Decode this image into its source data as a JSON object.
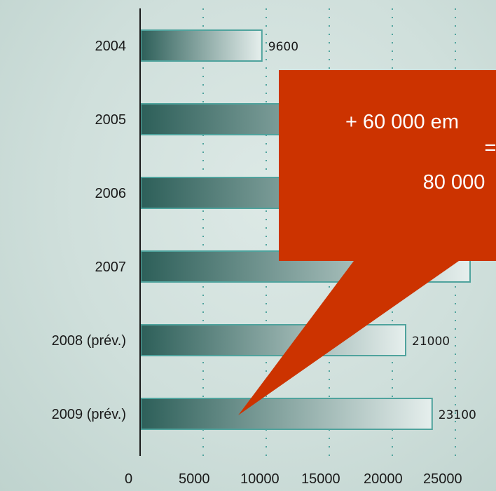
{
  "chart_data": {
    "type": "bar",
    "orientation": "horizontal",
    "categories": [
      "2004",
      "2005",
      "2006",
      "2007",
      "2008 (prév.)",
      "2009 (prév.)"
    ],
    "values": [
      9600,
      null,
      null,
      null,
      21000,
      23100
    ],
    "value_labels": [
      "9600",
      "",
      "",
      "",
      "21000",
      "23100"
    ],
    "x_ticks": [
      "0",
      "5000",
      "10000",
      "15000",
      "20000",
      "25000"
    ],
    "xlim": [
      0,
      25000
    ],
    "grid": "vertical dotted",
    "bar_gradient": [
      "#2d5f59",
      "#e6efed"
    ],
    "bar_border": "#4fa39d"
  },
  "callout": {
    "lines": [
      "+ 60 000 em",
      "=",
      "80 000"
    ],
    "color": "#cc3300"
  }
}
